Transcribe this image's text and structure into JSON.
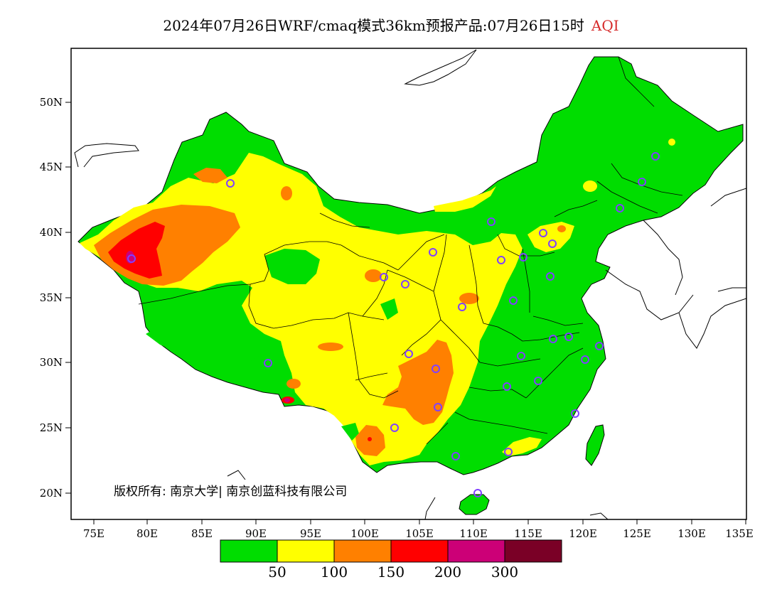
{
  "title": {
    "main": "2024年07月26日WRF/cmaq模式36km预报产品:07月26日15时",
    "variable": "AQI"
  },
  "axes": {
    "lat_ticks": [
      "50N",
      "45N",
      "40N",
      "35N",
      "30N",
      "25N",
      "20N"
    ],
    "lon_ticks": [
      "75E",
      "80E",
      "85E",
      "90E",
      "95E",
      "100E",
      "105E",
      "110E",
      "115E",
      "120E",
      "125E",
      "130E",
      "135E"
    ]
  },
  "copyright": "版权所有: 南京大学| 南京创蓝科技有限公司",
  "legend": {
    "colors": [
      "#00dd00",
      "#ffff00",
      "#ff8000",
      "#ff0000",
      "#cc0077",
      "#7a0026"
    ],
    "labels": [
      "50",
      "100",
      "150",
      "200",
      "300"
    ]
  },
  "colors": {
    "good": "#00dd00",
    "moderate": "#ffff00",
    "unhealthy_sensitive": "#ff8000",
    "unhealthy": "#ff0000",
    "very_unhealthy": "#cc0077",
    "hazardous": "#7a0026",
    "station_marker": "#8040ff"
  }
}
